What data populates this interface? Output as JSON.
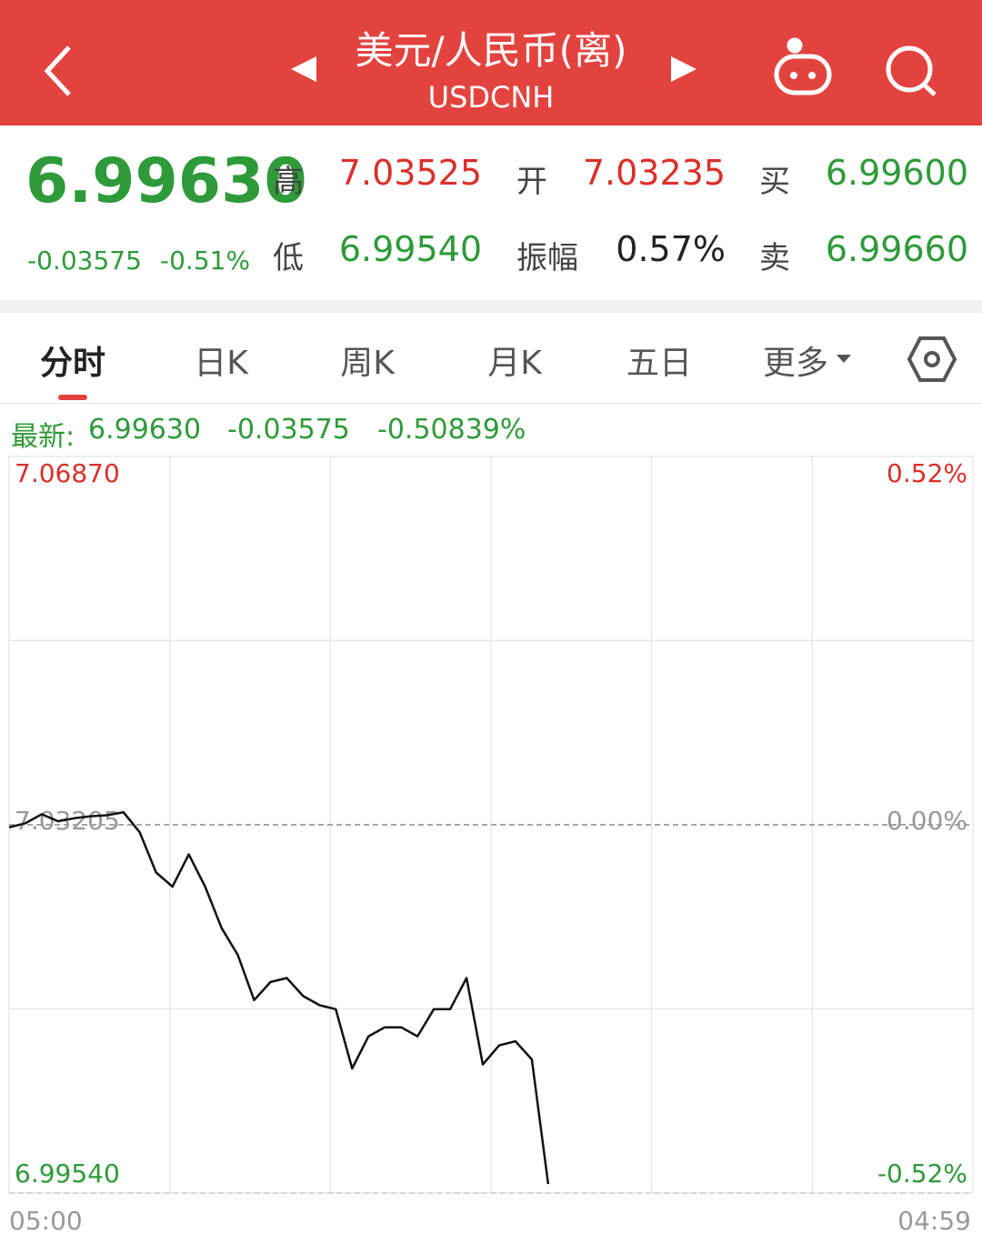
{
  "header": {
    "title": "美元/人民币(离)",
    "subtitle": "USDCNH"
  },
  "quote": {
    "price": "6.99630",
    "change": "-0.03575",
    "change_pct": "-0.51%",
    "fields": [
      {
        "label": "高",
        "value": "7.03525"
      },
      {
        "label": "开",
        "value": "7.03235"
      },
      {
        "label": "买",
        "value": "6.99600"
      },
      {
        "label": "低",
        "value": "6.99540"
      },
      {
        "label": "振幅",
        "value": "0.57%"
      },
      {
        "label": "卖",
        "value": "6.99660"
      }
    ]
  },
  "tabs": [
    "分时",
    "日K",
    "周K",
    "月K",
    "五日",
    "更多"
  ],
  "latest": {
    "label": "最新:",
    "price": "6.99630",
    "change": "-0.03575",
    "change_pct": "-0.50839%"
  },
  "chart_data": {
    "type": "line",
    "color": "#111111",
    "categories": [
      "05:00",
      null,
      null,
      null,
      null,
      null,
      null,
      null,
      null,
      null,
      null,
      null,
      null,
      null,
      null,
      null,
      null,
      null,
      null,
      null,
      null,
      null,
      null,
      null,
      null,
      null,
      null,
      null,
      null,
      null,
      null,
      null,
      null,
      null,
      null,
      null,
      null,
      null,
      null,
      null,
      null,
      null,
      null,
      null,
      null,
      null,
      null,
      null,
      null,
      null,
      null,
      null,
      null,
      null,
      null,
      null,
      null,
      null,
      null,
      "04:59"
    ],
    "values": [
      7.0318,
      7.0322,
      7.0331,
      7.0324,
      7.0327,
      7.0329,
      7.033,
      7.0333,
      7.0313,
      7.0273,
      7.0259,
      7.0291,
      7.0259,
      7.0218,
      7.0191,
      7.0146,
      7.0164,
      7.0168,
      7.015,
      7.0141,
      7.0137,
      7.0078,
      7.011,
      7.0119,
      7.0119,
      7.011,
      7.0137,
      7.0137,
      7.0168,
      7.0082,
      7.0101,
      7.0105,
      7.0087,
      6.9963,
      null,
      null,
      null,
      null,
      null,
      null,
      null,
      null,
      null,
      null,
      null,
      null,
      null,
      null,
      null,
      null,
      null,
      null,
      null,
      null,
      null,
      null,
      null,
      null,
      null,
      null
    ],
    "ylim": [
      6.9954,
      7.0687
    ],
    "yticks": [
      {
        "value": 7.0687,
        "label": "7.06870"
      },
      {
        "value": 7.03205,
        "label": "7.03205"
      },
      {
        "value": 6.9954,
        "label": "6.99540"
      }
    ],
    "y2lim": [
      -0.52,
      0.52
    ],
    "y2ticks": [
      {
        "value": 0.52,
        "label": "0.52%"
      },
      {
        "value": 0,
        "label": "0.00%"
      },
      {
        "value": -0.52,
        "label": "-0.52%"
      }
    ],
    "grid": true
  }
}
